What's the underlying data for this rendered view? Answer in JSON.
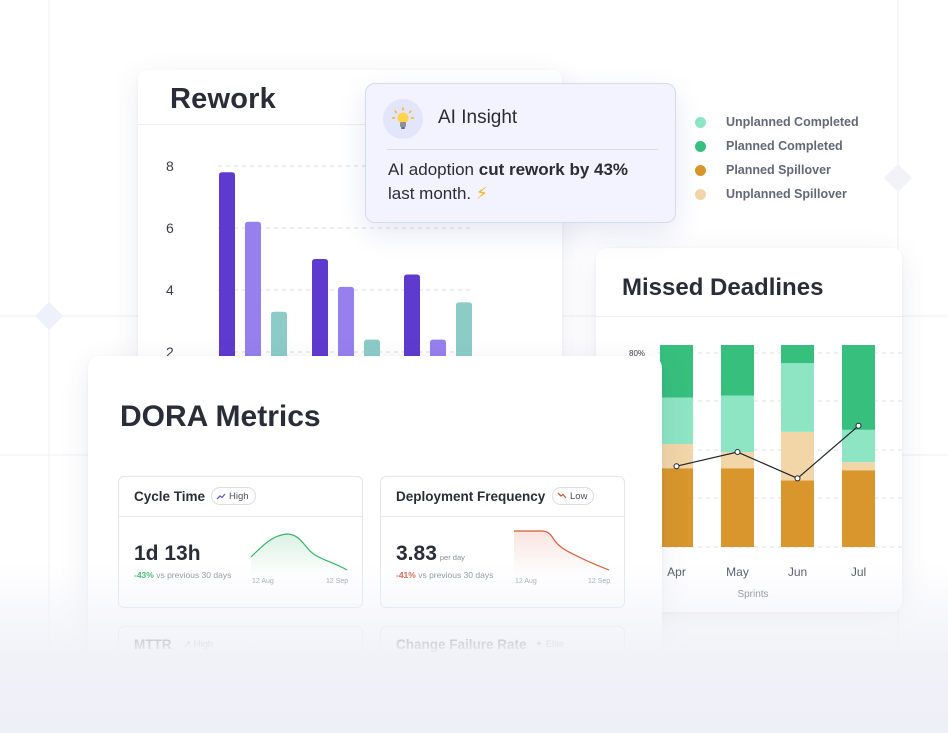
{
  "rework": {
    "title": "Rework",
    "chart_data": {
      "type": "bar",
      "title": "Rework",
      "yticks": [
        "8",
        "6",
        "4",
        "2"
      ],
      "groups": [
        {
          "values": [
            7.8,
            6.2,
            3.3
          ]
        },
        {
          "values": [
            5.0,
            4.1,
            2.4
          ]
        },
        {
          "values": [
            4.5,
            2.4,
            3.6
          ]
        }
      ],
      "colors": [
        "#5f3ace",
        "#9580ee",
        "#8ccbc7"
      ]
    }
  },
  "insight": {
    "icon": "lightbulb-icon",
    "title": "AI Insight",
    "text_before": "AI adoption ",
    "text_bold": "cut rework by 43%",
    "text_after": "last month. ",
    "emoji": "⚡"
  },
  "legend": {
    "items": [
      {
        "label": "Unplanned Completed",
        "color": "#8ee5c4"
      },
      {
        "label": "Planned Completed",
        "color": "#37bf7d"
      },
      {
        "label": "Planned Spillover",
        "color": "#d9962c"
      },
      {
        "label": "Unplanned Spillover",
        "color": "#f2d6a8"
      }
    ]
  },
  "missed": {
    "title": "Missed Deadlines",
    "chart_data": {
      "type": "bar",
      "stacked": true,
      "ytick": "80%",
      "categories": [
        "Apr",
        "May",
        "Jun",
        "Jul"
      ],
      "xlabel": "Sprints",
      "series": [
        {
          "name": "Planned Spillover",
          "color": "#d9962c",
          "values": [
            39,
            39,
            33,
            38
          ]
        },
        {
          "name": "Unplanned Spillover",
          "color": "#f2d6a8",
          "values": [
            12,
            8,
            24,
            4
          ]
        },
        {
          "name": "Unplanned Completed",
          "color": "#8ee5c4",
          "values": [
            23,
            28,
            34,
            16
          ]
        },
        {
          "name": "Planned Completed",
          "color": "#37bf7d",
          "values": [
            26,
            25,
            9,
            42
          ]
        }
      ],
      "line": [
        40,
        47,
        34,
        60
      ]
    }
  },
  "dora": {
    "title": "DORA Metrics",
    "metrics": [
      {
        "name": "Cycle Time",
        "badge": "High",
        "badge_color": "#5a5ecf",
        "value": "1d 13h",
        "unit": "",
        "change": "-43%",
        "change_text": " vs previous 30 days",
        "start_date": "12 Aug",
        "end_date": "12 Sep"
      },
      {
        "name": "Deployment Frequency",
        "badge": "Low",
        "badge_color": "#d4593a",
        "value": "3.83",
        "unit": "per day",
        "change": "-41%",
        "change_text": " vs previous 30 days",
        "start_date": "12 Aug",
        "end_date": "12 Sep"
      }
    ],
    "ghosts": [
      {
        "name": "MTTR",
        "badge": "High"
      },
      {
        "name": "Change Failure Rate",
        "badge": "Elite"
      }
    ]
  }
}
